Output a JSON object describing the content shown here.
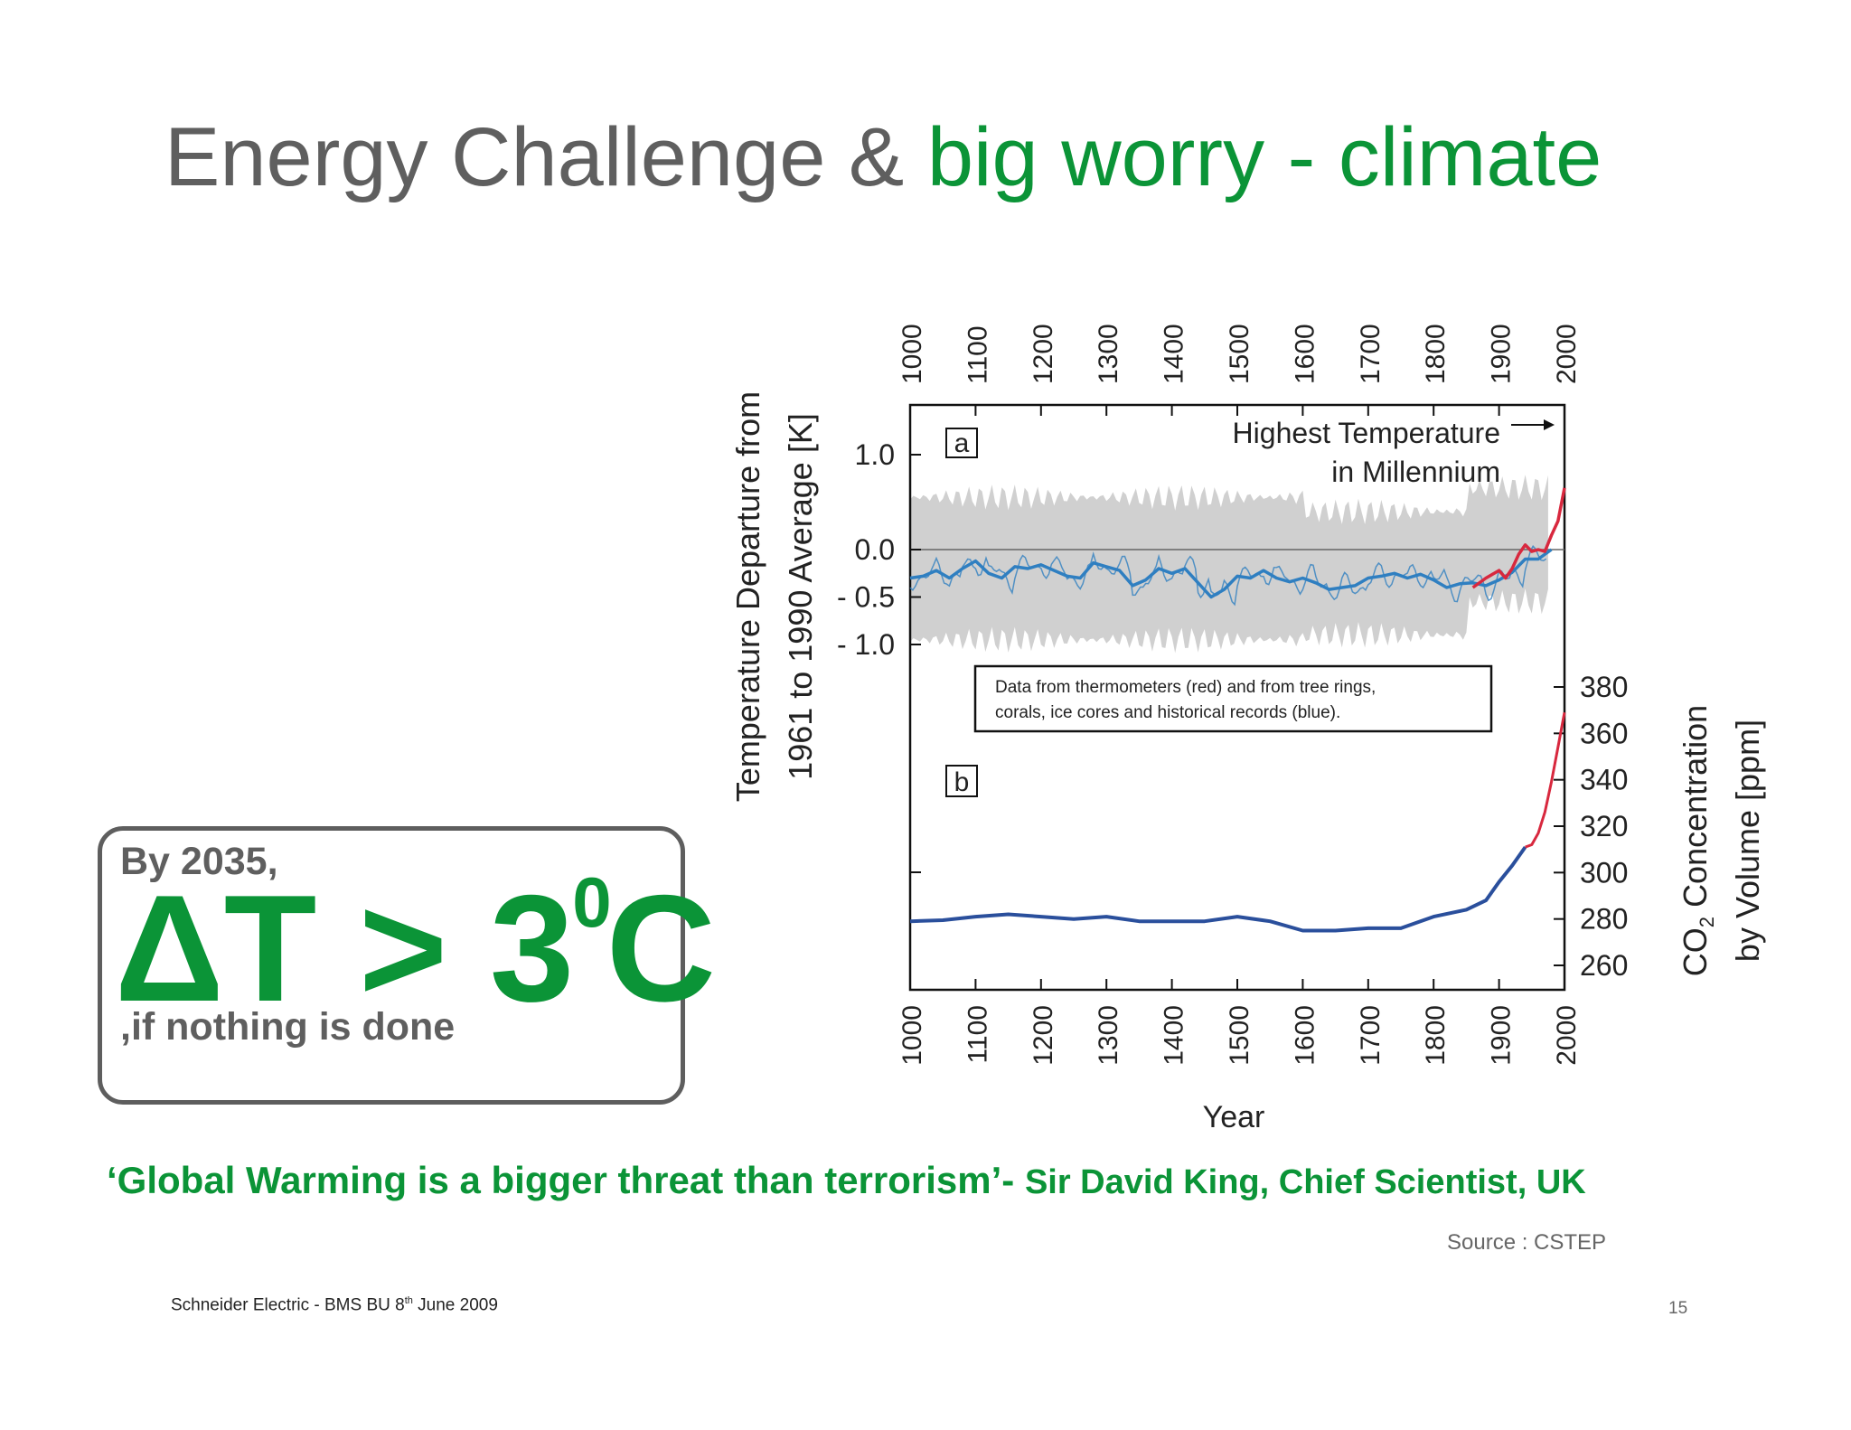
{
  "title": {
    "part1": "Energy Challenge & ",
    "part2": "big worry - climate"
  },
  "callout": {
    "by_year": "By 2035,",
    "formula_main": "ΔT > 3",
    "formula_sup": "0",
    "formula_unit": "C",
    "note": ",if nothing is done"
  },
  "quote": {
    "text": "‘Global Warming is a bigger threat than terrorism’- ",
    "attribution": "Sir David King, Chief Scientist, UK"
  },
  "source": "Source : CSTEP",
  "footer": {
    "company": "Schneider Electric - BMS BU 8",
    "date_sup": "th",
    "date_rest": " June 2009"
  },
  "page_number": "15",
  "colors": {
    "gray_text": "#5f5f5f",
    "green": "#0b9437",
    "proxy_blue": "#2f7fc1",
    "thermometer_red": "#d8283e",
    "uncertainty_gray": "#c8c8c8",
    "co2_blue": "#2a4f9c"
  },
  "chart_data": [
    {
      "panel": "a",
      "type": "line",
      "ylabel": "Temperature Departure from 1961 to 1990 Average [K]",
      "xlabel": "Year",
      "xlim": [
        1000,
        2000
      ],
      "ylim": [
        -1.3,
        1.5
      ],
      "x_ticks": [
        "1000",
        "1100",
        "1200",
        "1300",
        "1400",
        "1500",
        "1600",
        "1700",
        "1800",
        "1900",
        "2000"
      ],
      "y_ticks": [
        {
          "value": 1.0,
          "label": "1.0"
        },
        {
          "value": 0.0,
          "label": "0.0"
        },
        {
          "value": -0.5,
          "label": "- 0.5"
        },
        {
          "value": -1.0,
          "label": "- 1.0"
        }
      ],
      "panel_label": "a",
      "annotation": [
        "Highest Temperature",
        "in Millennium"
      ],
      "legend": [
        "Data from thermometers (red) and from tree rings,",
        "corals, ice cores and historical records (blue)."
      ],
      "series": [
        {
          "color": "#2f7fc1",
          "x": [
            1000,
            1020,
            1040,
            1060,
            1080,
            1100,
            1120,
            1140,
            1160,
            1180,
            1200,
            1220,
            1240,
            1260,
            1280,
            1300,
            1320,
            1340,
            1360,
            1380,
            1400,
            1420,
            1440,
            1460,
            1480,
            1500,
            1520,
            1540,
            1560,
            1580,
            1600,
            1620,
            1640,
            1660,
            1680,
            1700,
            1720,
            1740,
            1760,
            1780,
            1800,
            1820,
            1840,
            1860,
            1880,
            1900,
            1920,
            1940,
            1960,
            1980
          ],
          "values": [
            -0.3,
            -0.28,
            -0.22,
            -0.3,
            -0.2,
            -0.12,
            -0.25,
            -0.3,
            -0.18,
            -0.2,
            -0.16,
            -0.22,
            -0.28,
            -0.3,
            -0.14,
            -0.18,
            -0.22,
            -0.38,
            -0.32,
            -0.2,
            -0.25,
            -0.2,
            -0.35,
            -0.5,
            -0.42,
            -0.28,
            -0.3,
            -0.22,
            -0.3,
            -0.34,
            -0.3,
            -0.35,
            -0.42,
            -0.4,
            -0.38,
            -0.3,
            -0.28,
            -0.25,
            -0.3,
            -0.26,
            -0.32,
            -0.4,
            -0.36,
            -0.35,
            -0.38,
            -0.32,
            -0.24,
            -0.1,
            -0.1,
            0.0
          ]
        },
        {
          "color": "#d8283e",
          "x": [
            1860,
            1880,
            1900,
            1910,
            1920,
            1930,
            1940,
            1950,
            1960,
            1970,
            1980,
            1990,
            2000
          ],
          "values": [
            -0.4,
            -0.3,
            -0.22,
            -0.3,
            -0.2,
            -0.05,
            0.05,
            -0.02,
            0.0,
            -0.02,
            0.15,
            0.3,
            0.65
          ]
        }
      ]
    },
    {
      "panel": "b",
      "type": "line",
      "ylabel": "CO2 Concentration by Volume [ppm]",
      "xlabel": "Year",
      "xlim": [
        1000,
        2000
      ],
      "ylim": [
        250,
        390
      ],
      "x_ticks": [
        "1000",
        "1100",
        "1200",
        "1300",
        "1400",
        "1500",
        "1600",
        "1700",
        "1800",
        "1900",
        "2000"
      ],
      "y_ticks": [
        "380",
        "360",
        "340",
        "320",
        "300",
        "280",
        "260"
      ],
      "panel_label": "b",
      "series": [
        {
          "color": "#2a4f9c",
          "x": [
            1000,
            1050,
            1100,
            1150,
            1200,
            1250,
            1300,
            1350,
            1400,
            1450,
            1500,
            1550,
            1600,
            1650,
            1700,
            1750,
            1800,
            1850,
            1880,
            1900,
            1920,
            1940
          ],
          "values": [
            279,
            279.5,
            281,
            282,
            281,
            280,
            281,
            279,
            279,
            279,
            281,
            279,
            275,
            275,
            276,
            276,
            281,
            284,
            288,
            296,
            303,
            311
          ]
        },
        {
          "color": "#d8283e",
          "x": [
            1940,
            1950,
            1960,
            1970,
            1980,
            1990,
            2000
          ],
          "values": [
            311,
            312,
            317,
            326,
            339,
            354,
            369
          ]
        }
      ]
    }
  ]
}
